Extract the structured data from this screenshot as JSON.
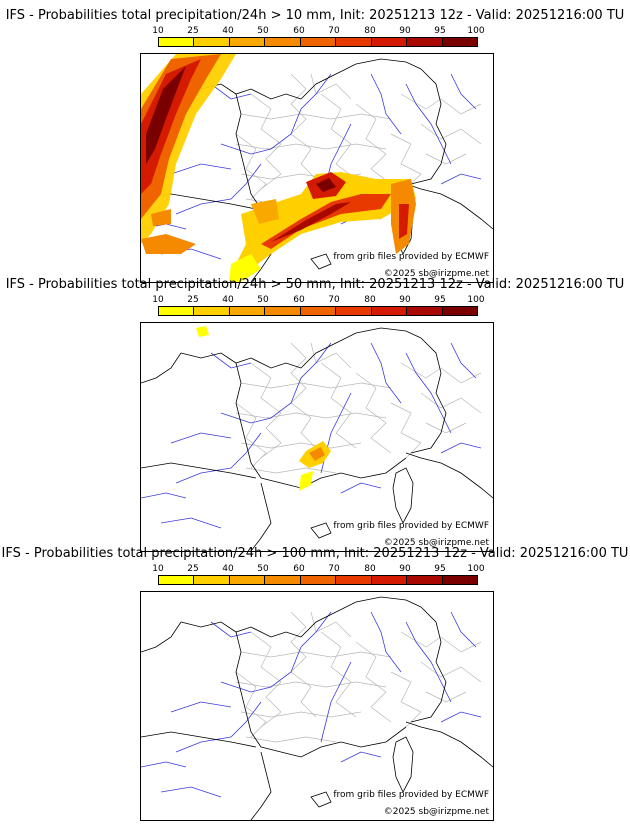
{
  "colorbar": {
    "ticks": [
      "10",
      "25",
      "40",
      "50",
      "60",
      "70",
      "80",
      "90",
      "95",
      "100"
    ],
    "colors": [
      "#ffff00",
      "#ffd000",
      "#f9a800",
      "#f58a00",
      "#f06400",
      "#e83a00",
      "#d41a00",
      "#a80800",
      "#7a0000"
    ]
  },
  "panels": [
    {
      "title": "IFS - Probabilities total precipitation/24h > 10 mm, Init: 20251213 12z - Valid: 20251216:00 TU"
    },
    {
      "title": "IFS - Probabilities total precipitation/24h > 50 mm, Init: 20251213 12z - Valid: 20251216:00 TU"
    },
    {
      "title": "IFS - Probabilities total precipitation/24h > 100 mm, Init: 20251213 12z - Valid: 20251216:00 TU"
    }
  ],
  "credits": {
    "source": "from grib files provided by ECMWF",
    "copyright": "©2025 sb@irizpme.net"
  }
}
